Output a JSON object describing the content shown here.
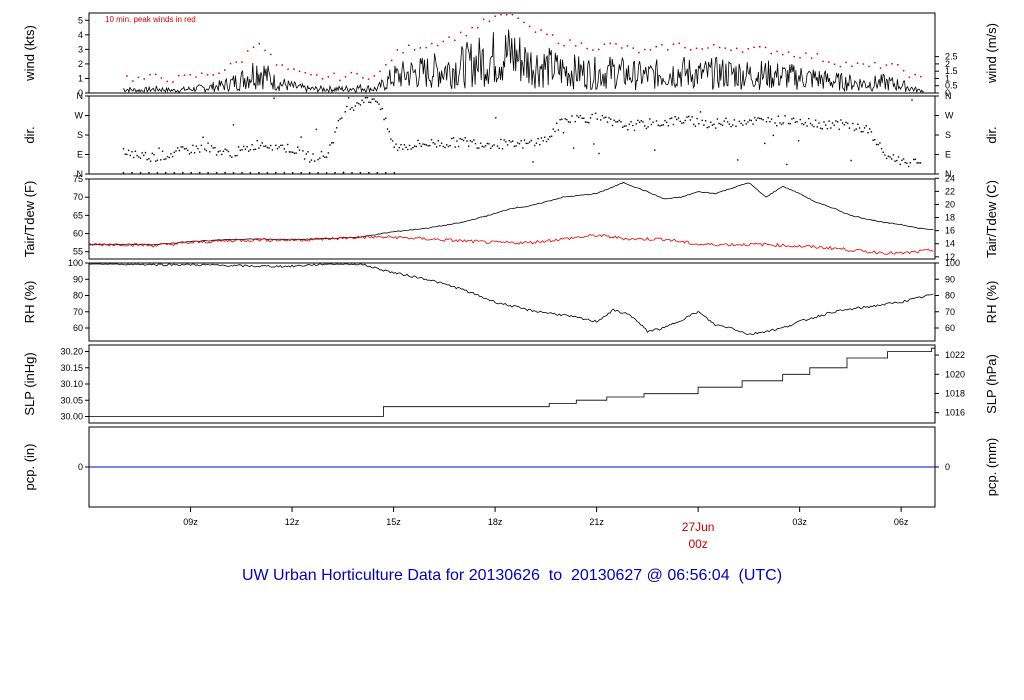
{
  "title": "UW Urban Horticulture Data for 20130626  to  20130627 @ 06:56:04  (UTC)",
  "colors": {
    "title": "#0000cc",
    "day_label": "#cc0000",
    "peak": "#dd0000",
    "dew": "#ee0000",
    "precip": "#0000cc",
    "line": "#000000"
  },
  "x_axis": {
    "ticks": [
      {
        "label": "09z",
        "h": 9
      },
      {
        "label": "12z",
        "h": 12
      },
      {
        "label": "15z",
        "h": 15
      },
      {
        "label": "18z",
        "h": 18
      },
      {
        "label": "21z",
        "h": 21
      },
      {
        "label": "",
        "h": 24
      },
      {
        "label": "03z",
        "h": 27
      },
      {
        "label": "06z",
        "h": 30
      }
    ],
    "day_label": "27Jun",
    "day_sub": "00z"
  },
  "chart_data": [
    {
      "type": "line",
      "name": "wind",
      "ylabel": "wind (kts)",
      "ylabel_right": "wind (m/s)",
      "annotation": "10 min. peak winds in red",
      "ylim": [
        0,
        5.5
      ],
      "left_ticks": [
        "0",
        "1",
        "2",
        "3",
        "4",
        "5"
      ],
      "left_tick_values": [
        0,
        1,
        2,
        3,
        4,
        5
      ],
      "right_ticks": [
        "0",
        "0.5",
        "1",
        "1.5",
        "2",
        "2.5"
      ],
      "right_tick_values": [
        0,
        0.5,
        1,
        1.5,
        2,
        2.5
      ],
      "series": [
        {
          "x": [
            7.0,
            7.5,
            8.0,
            8.5,
            9.0,
            9.5,
            10.0,
            10.5,
            11.0,
            11.5,
            12.0,
            12.5,
            13.0,
            13.5,
            14.0,
            14.5,
            15.0,
            15.5,
            16.0,
            16.5,
            17.0,
            17.5,
            18.0,
            18.5,
            19.0,
            19.5,
            20.0,
            20.5,
            21.0,
            21.5,
            22.0,
            22.5,
            23.0,
            23.5,
            24.0,
            24.5,
            25.0,
            25.5,
            26.0,
            26.5,
            27.0,
            27.5,
            28.0,
            28.5,
            29.0,
            29.5,
            30.0,
            30.5,
            31.0
          ],
          "y": [
            0.3,
            0.2,
            0.3,
            0.2,
            0.3,
            0.4,
            0.6,
            1.0,
            1.8,
            0.8,
            0.5,
            0.3,
            0.3,
            0.3,
            0.4,
            0.3,
            1.2,
            1.5,
            1.6,
            1.8,
            2.0,
            2.4,
            2.7,
            3.0,
            2.2,
            2.0,
            1.7,
            1.6,
            1.5,
            1.6,
            1.4,
            1.3,
            1.5,
            1.6,
            1.4,
            1.5,
            1.5,
            1.4,
            1.4,
            1.3,
            1.2,
            1.1,
            0.9,
            0.8,
            0.7,
            0.8,
            0.6,
            0.2,
            0.1
          ]
        }
      ]
    },
    {
      "type": "scatter",
      "name": "direction",
      "ylabel": "dir.",
      "ylabel_right": "dir.",
      "ylim": [
        0,
        4
      ],
      "left_ticks": [
        "N",
        "E",
        "S",
        "W",
        "N"
      ],
      "left_tick_values": [
        0,
        1,
        2,
        3,
        4
      ],
      "right_ticks": [
        "N",
        "E",
        "S",
        "W",
        "N"
      ],
      "right_tick_values": [
        0,
        1,
        2,
        3,
        4
      ],
      "series": [
        {
          "x": [
            7.0,
            7.5,
            8.0,
            8.5,
            9.0,
            9.5,
            10.0,
            10.5,
            11.0,
            11.5,
            12.0,
            12.5,
            13.0,
            13.5,
            14.0,
            14.5,
            15.0,
            15.5,
            16.0,
            16.5,
            17.0,
            17.5,
            18.0,
            18.5,
            19.0,
            19.5,
            20.0,
            20.5,
            21.0,
            21.5,
            22.0,
            22.5,
            23.0,
            23.5,
            24.0,
            24.5,
            25.0,
            25.5,
            26.0,
            26.5,
            27.0,
            27.5,
            28.0,
            28.5,
            29.0,
            29.5,
            30.0,
            30.5
          ],
          "y": [
            1.2,
            1.0,
            0.9,
            1.1,
            1.3,
            1.4,
            1.1,
            1.2,
            1.6,
            1.5,
            1.3,
            0.9,
            1.0,
            3.2,
            3.8,
            3.9,
            1.4,
            1.5,
            1.6,
            1.6,
            1.7,
            1.6,
            1.6,
            1.5,
            1.6,
            1.8,
            2.8,
            2.9,
            2.9,
            2.6,
            2.5,
            2.6,
            2.7,
            2.8,
            2.7,
            2.6,
            2.7,
            2.8,
            2.7,
            2.8,
            2.8,
            2.6,
            2.6,
            2.5,
            2.3,
            1.0,
            0.7,
            0.6
          ]
        }
      ]
    },
    {
      "type": "line",
      "name": "temperature",
      "ylabel": "Tair/Tdew (F)",
      "ylabel_right": "Tair/Tdew (C)",
      "ylim": [
        53,
        75
      ],
      "left_ticks": [
        "55",
        "60",
        "65",
        "70",
        "75"
      ],
      "left_tick_values": [
        55,
        60,
        65,
        70,
        75
      ],
      "right_ticks": [
        "12",
        "14",
        "16",
        "18",
        "20",
        "22",
        "24"
      ],
      "right_tick_values": [
        53.6,
        57.2,
        60.8,
        64.4,
        68.0,
        71.6,
        75.2
      ],
      "series": [
        {
          "name": "",
          "x": [
            7.0,
            8.0,
            9.0,
            10.0,
            11.0,
            12.0,
            13.0,
            14.0,
            15.0,
            16.0,
            17.0,
            18.0,
            18.5,
            19.0,
            20.0,
            21.0,
            21.8,
            22.5,
            23.0,
            23.5,
            24.0,
            24.5,
            25.0,
            25.5,
            26.0,
            26.5,
            27.0,
            27.5,
            28.0,
            28.5,
            29.0,
            29.5,
            30.0,
            30.5,
            31.0
          ],
          "y": [
            57.0,
            57.0,
            57.8,
            58.3,
            58.5,
            58.3,
            58.6,
            59.0,
            60.5,
            61.5,
            63.0,
            65.5,
            67.0,
            67.5,
            70.0,
            71.0,
            74.0,
            71.5,
            69.5,
            70.0,
            71.5,
            71.0,
            72.5,
            74.0,
            70.0,
            73.0,
            71.0,
            68.5,
            67.0,
            65.0,
            64.0,
            63.0,
            62.5,
            61.5,
            61.0
          ]
        },
        {
          "name": "",
          "x": [
            7.0,
            8.0,
            9.0,
            10.0,
            11.0,
            12.0,
            13.0,
            14.0,
            15.0,
            16.0,
            17.0,
            18.0,
            19.0,
            20.0,
            21.0,
            22.0,
            23.0,
            24.0,
            25.0,
            26.0,
            27.0,
            28.0,
            29.0,
            30.0,
            31.0
          ],
          "y": [
            57.0,
            56.7,
            57.5,
            58.0,
            58.3,
            58.2,
            58.5,
            59.0,
            59.0,
            58.5,
            58.0,
            57.5,
            57.5,
            58.5,
            59.5,
            58.5,
            58.5,
            57.0,
            57.0,
            57.0,
            56.5,
            56.0,
            55.0,
            54.5,
            55.5
          ]
        }
      ]
    },
    {
      "type": "line",
      "name": "humidity",
      "ylabel": "RH (%)",
      "ylabel_right": "RH (%)",
      "ylim": [
        52,
        100
      ],
      "left_ticks": [
        "60",
        "70",
        "80",
        "90",
        "100"
      ],
      "left_tick_values": [
        60,
        70,
        80,
        90,
        100
      ],
      "right_ticks": [
        "60",
        "70",
        "80",
        "90",
        "100"
      ],
      "right_tick_values": [
        60,
        70,
        80,
        90,
        100
      ],
      "series": [
        {
          "x": [
            7.0,
            8.0,
            9.0,
            10.0,
            11.0,
            12.0,
            13.0,
            14.0,
            15.0,
            16.0,
            17.0,
            18.0,
            19.0,
            20.0,
            21.0,
            21.5,
            22.0,
            22.5,
            23.0,
            24.0,
            24.5,
            25.0,
            25.5,
            26.0,
            26.5,
            27.0,
            28.0,
            29.0,
            30.0,
            31.0
          ],
          "y": [
            99.5,
            99.0,
            99.0,
            98.5,
            98.0,
            98.0,
            99.5,
            99.5,
            94.0,
            90.0,
            84.0,
            76.0,
            71.0,
            68.0,
            64.0,
            71.0,
            68.0,
            58.0,
            60.0,
            70.0,
            62.0,
            60.0,
            56.0,
            58.0,
            60.0,
            64.0,
            70.0,
            73.0,
            76.0,
            81.0
          ]
        }
      ]
    },
    {
      "type": "line",
      "name": "pressure",
      "ylabel": "SLP (inHg)",
      "ylabel_right": "SLP (hPa)",
      "ylim": [
        29.98,
        30.22
      ],
      "left_ticks": [
        "30.00",
        "30.05",
        "30.10",
        "30.15",
        "30.20"
      ],
      "left_tick_values": [
        30.0,
        30.05,
        30.1,
        30.15,
        30.2
      ],
      "right_ticks": [
        "1016",
        "1018",
        "1020",
        "1022"
      ],
      "right_tick_values": [
        30.0118,
        30.0709,
        30.1299,
        30.189
      ],
      "series": [
        {
          "x": [
            6.0,
            8.9,
            8.9,
            14.7,
            14.7,
            19.6,
            19.6,
            20.4,
            20.4,
            21.3,
            21.3,
            22.4,
            22.4,
            24.0,
            24.0,
            25.3,
            25.3,
            26.5,
            26.5,
            27.3,
            27.3,
            28.4,
            28.4,
            29.6,
            29.6,
            30.9,
            30.9,
            31.0
          ],
          "y": [
            30.0,
            30.0,
            30.0,
            30.0,
            30.03,
            30.03,
            30.04,
            30.04,
            30.05,
            30.05,
            30.06,
            30.06,
            30.07,
            30.07,
            30.09,
            30.09,
            30.11,
            30.11,
            30.13,
            30.13,
            30.15,
            30.15,
            30.18,
            30.18,
            30.2,
            30.2,
            30.21,
            30.21
          ]
        }
      ]
    },
    {
      "type": "line",
      "name": "precipitation",
      "ylabel": "pcp. (in)",
      "ylabel_right": "pcp. (mm)",
      "ylim": [
        -1,
        1
      ],
      "left_ticks": [
        "0"
      ],
      "left_tick_values": [
        0
      ],
      "right_ticks": [
        "0"
      ],
      "right_tick_values": [
        0
      ],
      "series": [
        {
          "x": [
            6.0,
            31.0
          ],
          "y": [
            0,
            0
          ]
        }
      ]
    }
  ]
}
